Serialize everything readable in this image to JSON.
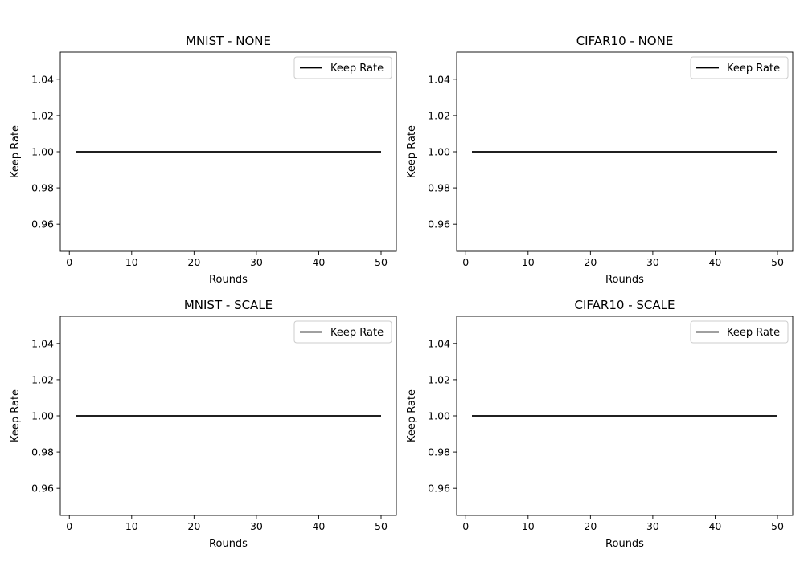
{
  "chart_data": [
    {
      "type": "line",
      "title": "MNIST - NONE",
      "xlabel": "Rounds",
      "ylabel": "Keep Rate",
      "xlim": [
        -1.45,
        52.45
      ],
      "ylim": [
        0.945,
        1.055
      ],
      "xticks": [
        0,
        10,
        20,
        30,
        40,
        50
      ],
      "yticks": [
        0.96,
        0.98,
        1.0,
        1.02,
        1.04
      ],
      "ytick_labels": [
        "0.96",
        "0.98",
        "1.00",
        "1.02",
        "1.04"
      ],
      "grid": false,
      "legend": "upper right",
      "series": [
        {
          "name": "Keep Rate",
          "color": "#000000",
          "x": [
            1,
            50
          ],
          "y": [
            1.0,
            1.0
          ]
        }
      ]
    },
    {
      "type": "line",
      "title": "CIFAR10 - NONE",
      "xlabel": "Rounds",
      "ylabel": "Keep Rate",
      "xlim": [
        -1.45,
        52.45
      ],
      "ylim": [
        0.945,
        1.055
      ],
      "xticks": [
        0,
        10,
        20,
        30,
        40,
        50
      ],
      "yticks": [
        0.96,
        0.98,
        1.0,
        1.02,
        1.04
      ],
      "ytick_labels": [
        "0.96",
        "0.98",
        "1.00",
        "1.02",
        "1.04"
      ],
      "grid": false,
      "legend": "upper right",
      "series": [
        {
          "name": "Keep Rate",
          "color": "#000000",
          "x": [
            1,
            50
          ],
          "y": [
            1.0,
            1.0
          ]
        }
      ]
    },
    {
      "type": "line",
      "title": "MNIST - SCALE",
      "xlabel": "Rounds",
      "ylabel": "Keep Rate",
      "xlim": [
        -1.45,
        52.45
      ],
      "ylim": [
        0.945,
        1.055
      ],
      "xticks": [
        0,
        10,
        20,
        30,
        40,
        50
      ],
      "yticks": [
        0.96,
        0.98,
        1.0,
        1.02,
        1.04
      ],
      "ytick_labels": [
        "0.96",
        "0.98",
        "1.00",
        "1.02",
        "1.04"
      ],
      "grid": false,
      "legend": "upper right",
      "series": [
        {
          "name": "Keep Rate",
          "color": "#000000",
          "x": [
            1,
            50
          ],
          "y": [
            1.0,
            1.0
          ]
        }
      ]
    },
    {
      "type": "line",
      "title": "CIFAR10 - SCALE",
      "xlabel": "Rounds",
      "ylabel": "Keep Rate",
      "xlim": [
        -1.45,
        52.45
      ],
      "ylim": [
        0.945,
        1.055
      ],
      "xticks": [
        0,
        10,
        20,
        30,
        40,
        50
      ],
      "yticks": [
        0.96,
        0.98,
        1.0,
        1.02,
        1.04
      ],
      "ytick_labels": [
        "0.96",
        "0.98",
        "1.00",
        "1.02",
        "1.04"
      ],
      "grid": false,
      "legend": "upper right",
      "series": [
        {
          "name": "Keep Rate",
          "color": "#000000",
          "x": [
            1,
            50
          ],
          "y": [
            1.0,
            1.0
          ]
        }
      ]
    }
  ]
}
